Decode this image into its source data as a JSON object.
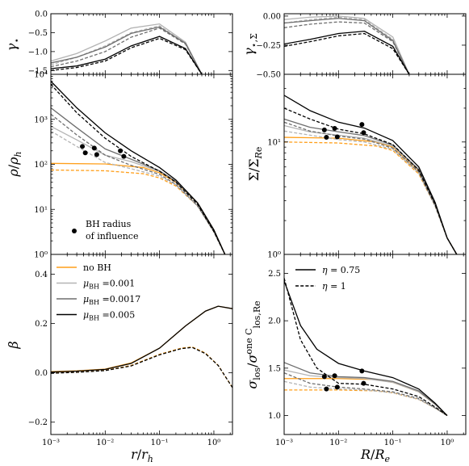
{
  "colors": {
    "noBH": "#ff9f1a",
    "bh001": "#b4b4b4",
    "bh0017": "#6e6e6e",
    "bh005": "#000000",
    "marker": "#000000"
  },
  "chart_data": [
    {
      "type": "line",
      "panel": "gamma-star-r",
      "ylabel": "γ⋆",
      "xscale": "log",
      "xlim": [
        0.001,
        2.2
      ],
      "ylim": [
        -1.6,
        0.0
      ],
      "yticks": [
        0.0,
        -0.5,
        -1.0,
        -1.5
      ],
      "ytick_labels": [
        "0.0",
        "−0.5",
        "−1.0",
        "−1.5"
      ],
      "series": [
        {
          "style": "bh001-solid",
          "x": [
            0.001,
            0.003,
            0.01,
            0.03,
            0.1,
            0.3,
            0.6
          ],
          "y": [
            -1.25,
            -1.05,
            -0.72,
            -0.38,
            -0.27,
            -0.75,
            -1.6
          ]
        },
        {
          "style": "bh001-dashed",
          "x": [
            0.001,
            0.003,
            0.01,
            0.03,
            0.1,
            0.3,
            0.6
          ],
          "y": [
            -1.35,
            -1.15,
            -0.85,
            -0.5,
            -0.32,
            -0.78,
            -1.6
          ]
        },
        {
          "style": "bh0017-solid",
          "x": [
            0.001,
            0.003,
            0.01,
            0.03,
            0.1,
            0.3,
            0.6
          ],
          "y": [
            -1.3,
            -1.15,
            -0.88,
            -0.52,
            -0.35,
            -0.78,
            -1.6
          ]
        },
        {
          "style": "bh0017-dashed",
          "x": [
            0.001,
            0.003,
            0.01,
            0.03,
            0.1,
            0.3,
            0.6
          ],
          "y": [
            -1.4,
            -1.25,
            -1.0,
            -0.62,
            -0.38,
            -0.8,
            -1.6
          ]
        },
        {
          "style": "bh005-solid",
          "x": [
            0.001,
            0.003,
            0.01,
            0.03,
            0.1,
            0.3,
            0.6
          ],
          "y": [
            -1.45,
            -1.38,
            -1.2,
            -0.85,
            -0.6,
            -0.92,
            -1.6
          ]
        },
        {
          "style": "bh005-dashed",
          "x": [
            0.001,
            0.003,
            0.01,
            0.03,
            0.1,
            0.3,
            0.6
          ],
          "y": [
            -1.5,
            -1.42,
            -1.25,
            -0.9,
            -0.65,
            -0.95,
            -1.6
          ]
        }
      ]
    },
    {
      "type": "line",
      "panel": "gamma-sigma-R",
      "ylabel": "γ⋆,Σ",
      "xscale": "log",
      "xlim": [
        0.001,
        2.2
      ],
      "ylim": [
        -0.5,
        0.02
      ],
      "yticks": [
        0.0,
        -0.25,
        -0.5
      ],
      "ytick_labels": [
        "0.00",
        "−0.25",
        "−0.50"
      ],
      "series": [
        {
          "style": "bh001-solid",
          "x": [
            0.001,
            0.003,
            0.01,
            0.03,
            0.1,
            0.2
          ],
          "y": [
            -0.03,
            -0.01,
            0.0,
            -0.02,
            -0.18,
            -0.5
          ]
        },
        {
          "style": "bh001-dashed",
          "x": [
            0.001,
            0.003,
            0.01,
            0.03,
            0.1,
            0.2
          ],
          "y": [
            -0.06,
            -0.03,
            -0.01,
            -0.03,
            -0.2,
            -0.5
          ]
        },
        {
          "style": "bh0017-solid",
          "x": [
            0.001,
            0.003,
            0.01,
            0.03,
            0.1,
            0.2
          ],
          "y": [
            -0.06,
            -0.04,
            -0.02,
            -0.04,
            -0.21,
            -0.5
          ]
        },
        {
          "style": "bh0017-dashed",
          "x": [
            0.001,
            0.003,
            0.01,
            0.03,
            0.1,
            0.2
          ],
          "y": [
            -0.1,
            -0.07,
            -0.05,
            -0.06,
            -0.22,
            -0.5
          ]
        },
        {
          "style": "bh005-solid",
          "x": [
            0.001,
            0.003,
            0.01,
            0.03,
            0.1,
            0.2
          ],
          "y": [
            -0.24,
            -0.2,
            -0.15,
            -0.13,
            -0.26,
            -0.5
          ]
        },
        {
          "style": "bh005-dashed",
          "x": [
            0.001,
            0.003,
            0.01,
            0.03,
            0.1,
            0.2
          ],
          "y": [
            -0.26,
            -0.22,
            -0.17,
            -0.15,
            -0.28,
            -0.5
          ]
        }
      ]
    },
    {
      "type": "line",
      "panel": "rho-r",
      "ylabel": "ρ/ρ_h",
      "xscale": "log",
      "yscale": "log",
      "xlim": [
        0.001,
        2.2
      ],
      "ylim": [
        1,
        10000
      ],
      "yticks": [
        1,
        10,
        100,
        1000,
        10000
      ],
      "ytick_labels": [
        "10⁰",
        "10¹",
        "10²",
        "10³",
        "10⁴"
      ],
      "legend": [
        "BH radius",
        "of influence"
      ],
      "series": [
        {
          "style": "noBH-solid",
          "x": [
            0.001,
            0.01,
            0.05,
            0.1,
            0.2,
            0.5,
            1,
            1.6
          ],
          "y": [
            105,
            102,
            85,
            65,
            40,
            14,
            3.5,
            1
          ]
        },
        {
          "style": "noBH-dashed",
          "x": [
            0.001,
            0.01,
            0.05,
            0.1,
            0.2,
            0.5,
            1,
            1.6
          ],
          "y": [
            75,
            72,
            62,
            50,
            33,
            12,
            3.2,
            1
          ]
        },
        {
          "style": "bh001-solid",
          "x": [
            0.001,
            0.003,
            0.01,
            0.03,
            0.1,
            0.2,
            0.5,
            1,
            1.6
          ],
          "y": [
            700,
            350,
            160,
            115,
            70,
            42,
            14,
            3.5,
            1
          ]
        },
        {
          "style": "bh001-dashed",
          "x": [
            0.001,
            0.003,
            0.01,
            0.03,
            0.1,
            0.2,
            0.5,
            1,
            1.6
          ],
          "y": [
            550,
            250,
            110,
            80,
            55,
            35,
            12,
            3.2,
            1
          ]
        },
        {
          "style": "bh0017-solid",
          "x": [
            0.001,
            0.003,
            0.01,
            0.03,
            0.1,
            0.2,
            0.5,
            1,
            1.6
          ],
          "y": [
            1800,
            650,
            220,
            130,
            72,
            42,
            14,
            3.5,
            1
          ]
        },
        {
          "style": "bh0017-dashed",
          "x": [
            0.001,
            0.003,
            0.01,
            0.03,
            0.1,
            0.2,
            0.5,
            1,
            1.6
          ],
          "y": [
            1300,
            450,
            160,
            95,
            60,
            36,
            12,
            3.2,
            1
          ]
        },
        {
          "style": "bh005-solid",
          "x": [
            0.001,
            0.003,
            0.01,
            0.03,
            0.1,
            0.2,
            0.5,
            1,
            1.6
          ],
          "y": [
            7000,
            1800,
            500,
            200,
            85,
            45,
            14,
            3.5,
            1
          ]
        },
        {
          "style": "bh005-dashed",
          "x": [
            0.001,
            0.003,
            0.01,
            0.03,
            0.1,
            0.2,
            0.5,
            1,
            1.6
          ],
          "y": [
            6000,
            1400,
            380,
            150,
            70,
            40,
            13,
            3.2,
            1
          ]
        }
      ],
      "markers": {
        "x": [
          0.0038,
          0.0043,
          0.0063,
          0.007,
          0.019,
          0.022
        ],
        "y": [
          250,
          180,
          230,
          165,
          200,
          150
        ]
      }
    },
    {
      "type": "line",
      "panel": "sigma-R",
      "ylabel": "Σ/Σ_{Re}",
      "xscale": "log",
      "yscale": "log",
      "xlim": [
        0.001,
        2.2
      ],
      "ylim": [
        1,
        40
      ],
      "yticks": [
        1,
        10
      ],
      "ytick_labels": [
        "10⁰",
        "10¹"
      ],
      "series": [
        {
          "style": "noBH-solid",
          "x": [
            0.001,
            0.01,
            0.05,
            0.1,
            0.3,
            0.6,
            1,
            1.5
          ],
          "y": [
            11,
            10.8,
            10,
            9,
            5.5,
            2.8,
            1.4,
            1
          ]
        },
        {
          "style": "noBH-dashed",
          "x": [
            0.001,
            0.01,
            0.05,
            0.1,
            0.3,
            0.6,
            1,
            1.5
          ],
          "y": [
            10,
            9.8,
            9.2,
            8.4,
            5.2,
            2.7,
            1.4,
            1
          ]
        },
        {
          "style": "bh001-solid",
          "x": [
            0.001,
            0.003,
            0.01,
            0.03,
            0.1,
            0.3,
            0.6,
            1,
            1.5
          ],
          "y": [
            14,
            12.3,
            11.5,
            10.8,
            9.2,
            5.6,
            2.8,
            1.4,
            1
          ]
        },
        {
          "style": "bh001-dashed",
          "x": [
            0.001,
            0.003,
            0.01,
            0.03,
            0.1,
            0.3,
            0.6,
            1,
            1.5
          ],
          "y": [
            12.5,
            11.5,
            10.5,
            10,
            8.6,
            5.3,
            2.7,
            1.4,
            1
          ]
        },
        {
          "style": "bh0017-solid",
          "x": [
            0.001,
            0.003,
            0.01,
            0.03,
            0.1,
            0.3,
            0.6,
            1,
            1.5
          ],
          "y": [
            16,
            13.5,
            12.3,
            11.4,
            9.4,
            5.7,
            2.8,
            1.4,
            1
          ]
        },
        {
          "style": "bh0017-dashed",
          "x": [
            0.001,
            0.003,
            0.01,
            0.03,
            0.1,
            0.3,
            0.6,
            1,
            1.5
          ],
          "y": [
            15,
            12.5,
            11.3,
            10.6,
            8.8,
            5.4,
            2.7,
            1.4,
            1
          ]
        },
        {
          "style": "bh005-solid",
          "x": [
            0.001,
            0.003,
            0.01,
            0.03,
            0.1,
            0.3,
            0.6,
            1,
            1.5
          ],
          "y": [
            26,
            19,
            15,
            13.3,
            10.3,
            6,
            2.9,
            1.4,
            1
          ]
        },
        {
          "style": "bh005-dashed",
          "x": [
            0.001,
            0.003,
            0.01,
            0.03,
            0.1,
            0.3,
            0.6,
            1,
            1.5
          ],
          "y": [
            20,
            16,
            13,
            11.8,
            9.5,
            5.6,
            2.8,
            1.4,
            1
          ]
        }
      ],
      "markers": {
        "x": [
          0.0055,
          0.006,
          0.0085,
          0.0095,
          0.027,
          0.029
        ],
        "y": [
          12.8,
          11,
          13.2,
          11.1,
          14.3,
          12.1
        ]
      }
    },
    {
      "type": "line",
      "panel": "beta-r",
      "ylabel": "β",
      "xlabel": "r/r_h",
      "xscale": "log",
      "xlim": [
        0.001,
        2.2
      ],
      "ylim": [
        -0.25,
        0.48
      ],
      "yticks": [
        -0.2,
        0.0,
        0.2,
        0.4
      ],
      "ytick_labels": [
        "−0.2",
        "0.0",
        "0.2",
        "0.4"
      ],
      "xticks": [
        0.001,
        0.01,
        0.1,
        1
      ],
      "xtick_labels": [
        "10⁻³",
        "10⁻²",
        "10⁻¹",
        "10⁰"
      ],
      "legend": [
        "no BH",
        "μ_BH =0.001",
        "μ_BH =0.0017",
        "μ_BH =0.005"
      ],
      "series": [
        {
          "style": "noBH-solid",
          "x": [
            0.001,
            0.003,
            0.01,
            0.03,
            0.1,
            0.3,
            0.7,
            1.2,
            2.2
          ],
          "y": [
            0.005,
            0.008,
            0.015,
            0.04,
            0.1,
            0.19,
            0.25,
            0.27,
            0.26
          ]
        },
        {
          "style": "noBH-dashed",
          "x": [
            0.001,
            0.003,
            0.01,
            0.03,
            0.1,
            0.25,
            0.4,
            0.7,
            1.2,
            2.2
          ],
          "y": [
            0.0,
            0.003,
            0.01,
            0.03,
            0.075,
            0.1,
            0.105,
            0.08,
            0.03,
            -0.06
          ]
        },
        {
          "style": "bh005-solid",
          "x": [
            0.001,
            0.003,
            0.01,
            0.03,
            0.1,
            0.3,
            0.7,
            1.2,
            2.2
          ],
          "y": [
            0.003,
            0.007,
            0.014,
            0.038,
            0.1,
            0.19,
            0.25,
            0.27,
            0.26
          ]
        },
        {
          "style": "bh005-dashed",
          "x": [
            0.001,
            0.003,
            0.01,
            0.03,
            0.1,
            0.25,
            0.4,
            0.7,
            1.2,
            2.2
          ],
          "y": [
            -0.002,
            0.002,
            0.009,
            0.028,
            0.073,
            0.098,
            0.103,
            0.078,
            0.03,
            -0.06
          ]
        }
      ]
    },
    {
      "type": "line",
      "panel": "sigma-los-R",
      "ylabel": "σ_los/σ_los,Re^{one C}",
      "xlabel": "R/R_e",
      "xscale": "log",
      "xlim": [
        0.001,
        2.2
      ],
      "ylim": [
        0.8,
        2.7
      ],
      "yticks": [
        1.0,
        1.5,
        2.0,
        2.5
      ],
      "ytick_labels": [
        "1.0",
        "1.5",
        "2.0",
        "2.5"
      ],
      "xticks": [
        0.001,
        0.01,
        0.1,
        1
      ],
      "xtick_labels": [
        "10⁻³",
        "10⁻²",
        "10⁻¹",
        "10⁰"
      ],
      "legend": [
        "η = 0.75",
        "η = 1"
      ],
      "series": [
        {
          "style": "noBH-solid",
          "x": [
            0.001,
            0.01,
            0.05,
            0.1,
            0.3,
            0.6,
            1
          ],
          "y": [
            1.39,
            1.39,
            1.38,
            1.35,
            1.25,
            1.12,
            1.0
          ]
        },
        {
          "style": "noBH-dashed",
          "x": [
            0.001,
            0.01,
            0.05,
            0.1,
            0.3,
            0.6,
            1
          ],
          "y": [
            1.27,
            1.27,
            1.26,
            1.24,
            1.17,
            1.08,
            1.0
          ]
        },
        {
          "style": "bh001-solid",
          "x": [
            0.001,
            0.003,
            0.01,
            0.03,
            0.1,
            0.3,
            0.6,
            1
          ],
          "y": [
            1.48,
            1.42,
            1.4,
            1.39,
            1.35,
            1.25,
            1.12,
            1.0
          ]
        },
        {
          "style": "bh001-dashed",
          "x": [
            0.001,
            0.003,
            0.01,
            0.03,
            0.1,
            0.3,
            0.6,
            1
          ],
          "y": [
            1.36,
            1.3,
            1.28,
            1.27,
            1.24,
            1.17,
            1.08,
            1.0
          ]
        },
        {
          "style": "bh0017-solid",
          "x": [
            0.001,
            0.003,
            0.01,
            0.03,
            0.1,
            0.3,
            0.6,
            1
          ],
          "y": [
            1.56,
            1.45,
            1.41,
            1.4,
            1.36,
            1.26,
            1.12,
            1.0
          ]
        },
        {
          "style": "bh0017-dashed",
          "x": [
            0.001,
            0.003,
            0.01,
            0.03,
            0.1,
            0.3,
            0.6,
            1
          ],
          "y": [
            1.45,
            1.34,
            1.3,
            1.28,
            1.25,
            1.18,
            1.08,
            1.0
          ]
        },
        {
          "style": "bh005-solid",
          "x": [
            0.001,
            0.002,
            0.004,
            0.01,
            0.03,
            0.1,
            0.3,
            0.6,
            1
          ],
          "y": [
            2.42,
            1.95,
            1.7,
            1.55,
            1.47,
            1.4,
            1.28,
            1.13,
            1.0
          ]
        },
        {
          "style": "bh005-dashed",
          "x": [
            0.001,
            0.002,
            0.004,
            0.01,
            0.03,
            0.1,
            0.3,
            0.6,
            1
          ],
          "y": [
            2.45,
            1.8,
            1.5,
            1.34,
            1.33,
            1.28,
            1.2,
            1.09,
            1.0
          ]
        }
      ],
      "markers": {
        "x": [
          0.0055,
          0.006,
          0.0085,
          0.0095,
          0.027,
          0.029
        ],
        "y": [
          1.41,
          1.28,
          1.42,
          1.3,
          1.47,
          1.34
        ]
      }
    }
  ]
}
